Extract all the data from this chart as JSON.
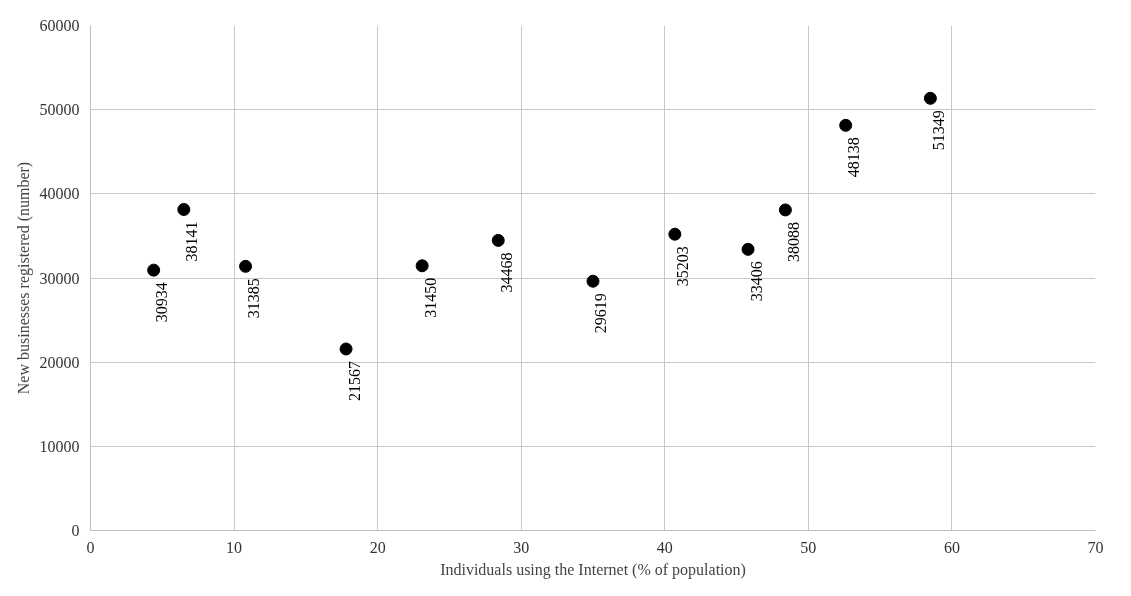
{
  "chart_data": {
    "type": "scatter",
    "xlabel": "Individuals using the Internet (% of population)",
    "ylabel": "New businesses registered (number)",
    "x": [
      4.4,
      6.5,
      10.8,
      17.8,
      23.1,
      28.4,
      35.0,
      40.7,
      45.8,
      48.4,
      52.6,
      58.5
    ],
    "values": [
      30934,
      38141,
      31385,
      21567,
      31450,
      34468,
      29619,
      35203,
      33406,
      38088,
      48138,
      51349
    ],
    "color": "#000000",
    "marker": "circle",
    "data_labels": true,
    "xlim": [
      0,
      70
    ],
    "xticks": [
      0,
      10,
      20,
      30,
      40,
      50,
      60,
      70
    ],
    "ylim": [
      0,
      60000
    ],
    "yticks": [
      0,
      10000,
      20000,
      30000,
      40000,
      50000,
      60000
    ],
    "grid": true
  }
}
